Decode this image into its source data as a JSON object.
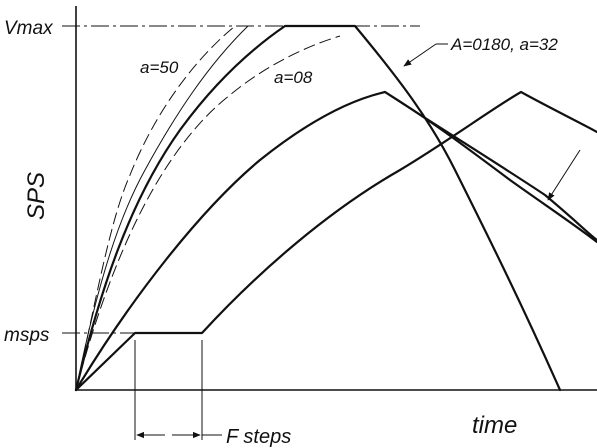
{
  "labels": {
    "y_axis": "SPS",
    "x_axis": "time",
    "vmax": "Vmax",
    "msps": "msps",
    "a50": "a=50",
    "a08": "a=08",
    "callout": "A=0180, a=32",
    "f_steps": "F steps"
  }
}
